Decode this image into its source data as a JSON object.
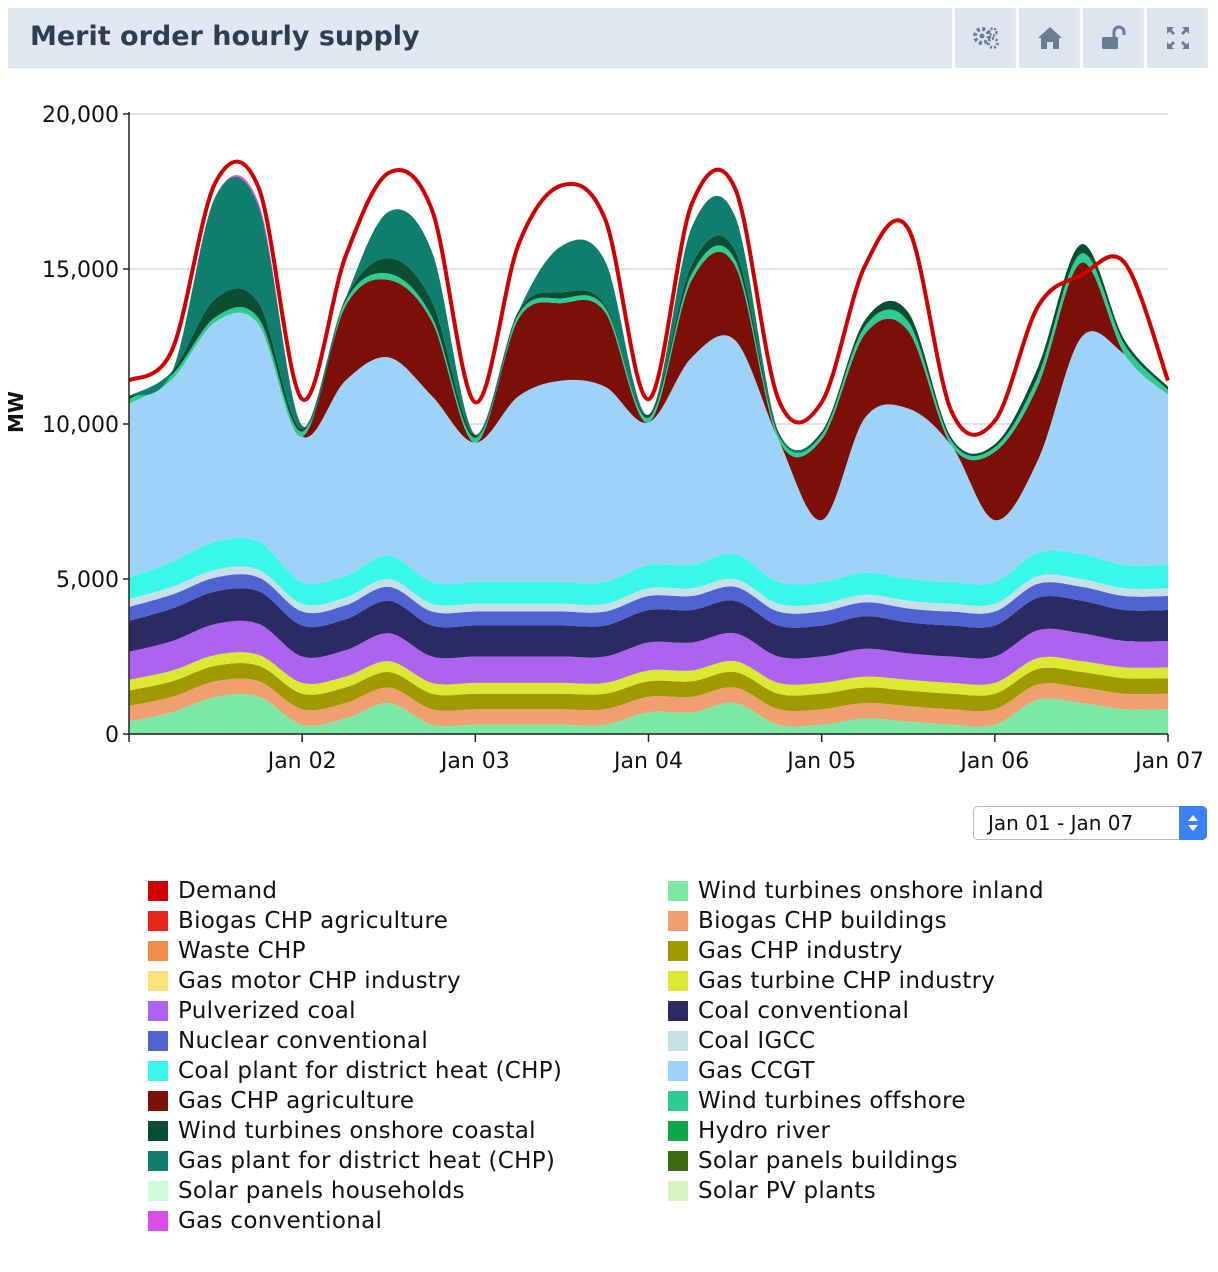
{
  "header": {
    "title": "Merit order hourly supply"
  },
  "toolbar": [
    {
      "name": "settings-button",
      "icon": "gears-icon"
    },
    {
      "name": "home-button",
      "icon": "home-icon"
    },
    {
      "name": "lock-button",
      "icon": "unlock-icon"
    },
    {
      "name": "fullscreen-button",
      "icon": "expand-icon"
    }
  ],
  "range_select": {
    "value": "Jan 01 - Jan 07"
  },
  "chart_data": {
    "type": "area",
    "stacked": true,
    "ylabel": "MW",
    "ylim": [
      0,
      20000
    ],
    "yticks": [
      0,
      5000,
      10000,
      15000,
      20000
    ],
    "ytick_labels": [
      "0",
      "5,000",
      "10,000",
      "15,000",
      "20,000"
    ],
    "xlim_days": [
      0,
      6
    ],
    "xticks": [
      1,
      2,
      3,
      4,
      5,
      6
    ],
    "xtick_labels": [
      "Jan 02",
      "Jan 03",
      "Jan 04",
      "Jan 05",
      "Jan 06",
      "Jan 07"
    ],
    "grid": true,
    "x_hours": [
      0,
      6,
      12,
      18,
      24,
      30,
      36,
      42,
      48,
      54,
      60,
      66,
      72,
      78,
      84,
      90,
      96,
      102,
      108,
      114,
      120,
      126,
      132,
      138,
      144
    ],
    "series": [
      {
        "name": "Wind turbines onshore inland",
        "color": "#7be8a4",
        "values": [
          400,
          700,
          1200,
          1200,
          300,
          500,
          1000,
          300,
          300,
          300,
          300,
          300,
          700,
          700,
          1000,
          300,
          300,
          500,
          400,
          300,
          300,
          1100,
          1000,
          800,
          800
        ]
      },
      {
        "name": "Biogas CHP buildings",
        "color": "#f0a070",
        "values": [
          500,
          500,
          500,
          500,
          500,
          500,
          500,
          500,
          500,
          500,
          500,
          500,
          500,
          500,
          500,
          500,
          500,
          500,
          500,
          500,
          500,
          500,
          500,
          500,
          500
        ]
      },
      {
        "name": "Gas CHP industry",
        "color": "#a09a00",
        "values": [
          500,
          500,
          500,
          500,
          500,
          500,
          500,
          500,
          500,
          500,
          500,
          500,
          500,
          500,
          500,
          500,
          500,
          500,
          500,
          500,
          500,
          500,
          500,
          500,
          500
        ]
      },
      {
        "name": "Gas turbine CHP industry",
        "color": "#dce832",
        "values": [
          350,
          350,
          350,
          350,
          350,
          350,
          350,
          350,
          350,
          350,
          350,
          350,
          350,
          350,
          350,
          350,
          350,
          350,
          350,
          350,
          350,
          350,
          350,
          350,
          350
        ]
      },
      {
        "name": "Pulverized coal",
        "color": "#ad62f0",
        "values": [
          900,
          950,
          1000,
          1000,
          850,
          850,
          900,
          850,
          850,
          850,
          850,
          850,
          900,
          900,
          900,
          850,
          850,
          900,
          850,
          850,
          850,
          900,
          900,
          850,
          850
        ]
      },
      {
        "name": "Coal conventional",
        "color": "#2b2a63",
        "values": [
          1000,
          1050,
          1050,
          1050,
          1000,
          1000,
          1050,
          1000,
          1000,
          1000,
          1000,
          1000,
          1050,
          1050,
          1050,
          1000,
          1000,
          1050,
          1000,
          1000,
          1000,
          1050,
          1050,
          1000,
          1000
        ]
      },
      {
        "name": "Nuclear conventional",
        "color": "#4f63d3",
        "values": [
          450,
          450,
          450,
          450,
          450,
          450,
          450,
          450,
          450,
          450,
          450,
          450,
          450,
          450,
          450,
          450,
          450,
          450,
          450,
          450,
          450,
          450,
          450,
          450,
          450
        ]
      },
      {
        "name": "Coal IGCC",
        "color": "#c6dfe8",
        "values": [
          250,
          250,
          250,
          250,
          250,
          250,
          250,
          250,
          250,
          250,
          250,
          250,
          250,
          250,
          250,
          250,
          250,
          250,
          250,
          250,
          250,
          250,
          250,
          250,
          250
        ]
      },
      {
        "name": "Coal plant for district heat (CHP)",
        "color": "#38f8ea",
        "values": [
          700,
          800,
          900,
          900,
          700,
          700,
          750,
          700,
          700,
          700,
          700,
          700,
          750,
          750,
          800,
          700,
          700,
          700,
          700,
          700,
          700,
          750,
          800,
          750,
          750
        ]
      },
      {
        "name": "Gas CCGT",
        "color": "#9dd2f9",
        "values": [
          5600,
          5900,
          7100,
          7000,
          4700,
          6300,
          6400,
          6000,
          4500,
          6000,
          6500,
          6300,
          4600,
          6700,
          6900,
          4600,
          2000,
          5000,
          5500,
          4400,
          2000,
          3000,
          7000,
          6800,
          5500
        ]
      },
      {
        "name": "Gas CHP agriculture",
        "color": "#7c1008",
        "values": [
          0,
          0,
          0,
          0,
          0,
          2400,
          2500,
          2400,
          0,
          2500,
          2500,
          2400,
          0,
          2500,
          2400,
          0,
          2600,
          2700,
          2500,
          0,
          2200,
          2400,
          2400,
          0,
          0
        ]
      },
      {
        "name": "Wind turbines offshore",
        "color": "#2ecb93",
        "values": [
          150,
          150,
          150,
          200,
          150,
          150,
          200,
          150,
          150,
          150,
          150,
          150,
          150,
          200,
          200,
          150,
          150,
          250,
          300,
          150,
          150,
          300,
          300,
          300,
          150
        ]
      },
      {
        "name": "Wind turbines onshore coastal",
        "color": "#0b4e33",
        "values": [
          100,
          100,
          600,
          500,
          100,
          100,
          500,
          500,
          100,
          100,
          200,
          100,
          100,
          300,
          300,
          100,
          100,
          200,
          300,
          100,
          100,
          300,
          300,
          150,
          100
        ]
      },
      {
        "name": "Gas plant for district heat (CHP)",
        "color": "#0f7e6d",
        "values": [
          0,
          0,
          3300,
          3100,
          100,
          0,
          1500,
          1600,
          0,
          0,
          1500,
          1400,
          0,
          1200,
          1100,
          0,
          0,
          0,
          0,
          0,
          0,
          0,
          0,
          0,
          0
        ]
      },
      {
        "name": "Gas conventional",
        "color": "#da4de9",
        "values": [
          0,
          0,
          0,
          100,
          0,
          0,
          0,
          0,
          0,
          0,
          0,
          0,
          0,
          0,
          0,
          0,
          0,
          0,
          0,
          0,
          0,
          0,
          0,
          0,
          0
        ]
      }
    ],
    "demand": {
      "name": "Demand",
      "color": "#d10000",
      "values": [
        11400,
        12400,
        17800,
        17600,
        10800,
        15400,
        18100,
        16900,
        10700,
        15800,
        17700,
        16600,
        10800,
        17100,
        17600,
        10800,
        10700,
        15100,
        16300,
        10400,
        10100,
        13800,
        14800,
        15200,
        11400
      ]
    },
    "legend": [
      {
        "name": "Demand",
        "color": "#d10000"
      },
      {
        "name": "Wind turbines onshore inland",
        "color": "#7be8a4"
      },
      {
        "name": "Biogas CHP agriculture",
        "color": "#e6271a"
      },
      {
        "name": "Biogas CHP buildings",
        "color": "#f0a070"
      },
      {
        "name": "Waste CHP",
        "color": "#f28c4a"
      },
      {
        "name": "Gas CHP industry",
        "color": "#a09a00"
      },
      {
        "name": "Gas motor CHP industry",
        "color": "#fbe27a"
      },
      {
        "name": "Gas turbine CHP industry",
        "color": "#dce832"
      },
      {
        "name": "Pulverized coal",
        "color": "#ad62f0"
      },
      {
        "name": "Coal conventional",
        "color": "#2b2a63"
      },
      {
        "name": "Nuclear conventional",
        "color": "#4f63d3"
      },
      {
        "name": "Coal IGCC",
        "color": "#c6dfe8"
      },
      {
        "name": "Coal plant for district heat (CHP)",
        "color": "#38f8ea"
      },
      {
        "name": "Gas CCGT",
        "color": "#9dd2f9"
      },
      {
        "name": "Gas CHP agriculture",
        "color": "#7c1008"
      },
      {
        "name": "Wind turbines offshore",
        "color": "#2ecb93"
      },
      {
        "name": "Wind turbines onshore coastal",
        "color": "#0b4e33"
      },
      {
        "name": "Hydro river",
        "color": "#0aa84a"
      },
      {
        "name": "Gas plant for district heat (CHP)",
        "color": "#0f7e6d"
      },
      {
        "name": "Solar panels buildings",
        "color": "#3d6b10"
      },
      {
        "name": "Solar panels households",
        "color": "#ccfcd8"
      },
      {
        "name": "Solar PV plants",
        "color": "#d6f4c0"
      },
      {
        "name": "Gas conventional",
        "color": "#da4de9"
      }
    ]
  }
}
